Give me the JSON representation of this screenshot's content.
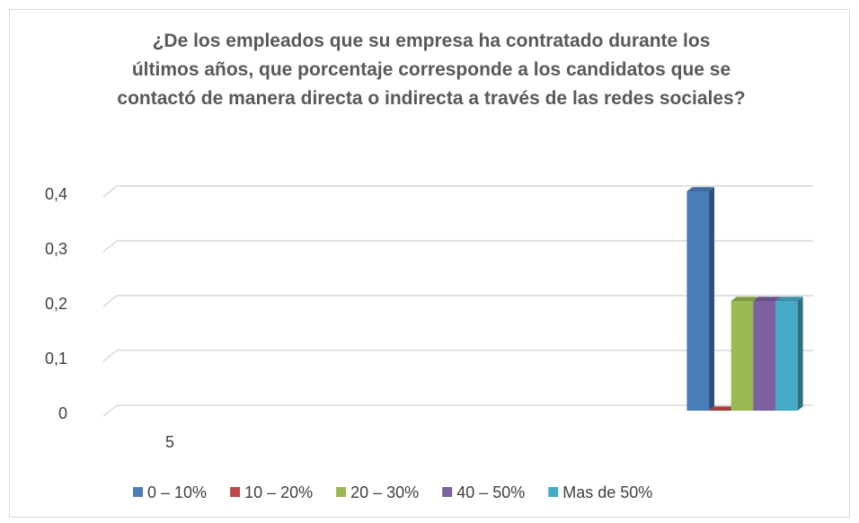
{
  "chart_data": {
    "type": "bar3d",
    "title": "¿De los empleados que su empresa ha contratado durante los últimos años, que porcentaje corresponde a los candidatos que se contactó de manera directa o indirecta a través de las redes sociales?",
    "categories": [
      "5",
      null,
      null,
      null,
      null
    ],
    "series": [
      {
        "name": "0 – 10%",
        "color": "#4a7ebb",
        "values": [
          null,
          null,
          null,
          null,
          0.4
        ]
      },
      {
        "name": "10 – 20%",
        "color": "#be4b48",
        "values": [
          null,
          null,
          null,
          null,
          0
        ]
      },
      {
        "name": "20 – 30%",
        "color": "#98b954",
        "values": [
          null,
          null,
          null,
          null,
          0.2
        ]
      },
      {
        "name": "40 – 50%",
        "color": "#7d60a0",
        "values": [
          null,
          null,
          null,
          null,
          0.2
        ]
      },
      {
        "name": "Mas de 50%",
        "color": "#46aac5",
        "values": [
          null,
          null,
          null,
          null,
          0.2
        ]
      }
    ],
    "ylim": [
      0,
      0.4
    ],
    "yticks": [
      0,
      {
        "value": 0.1,
        "label": "0,1"
      },
      {
        "value": 0.2,
        "label": "0,2"
      },
      {
        "value": 0.3,
        "label": "0,3"
      },
      {
        "value": 0.4,
        "label": "0,4"
      }
    ],
    "grid": true,
    "legend": "bottom"
  }
}
